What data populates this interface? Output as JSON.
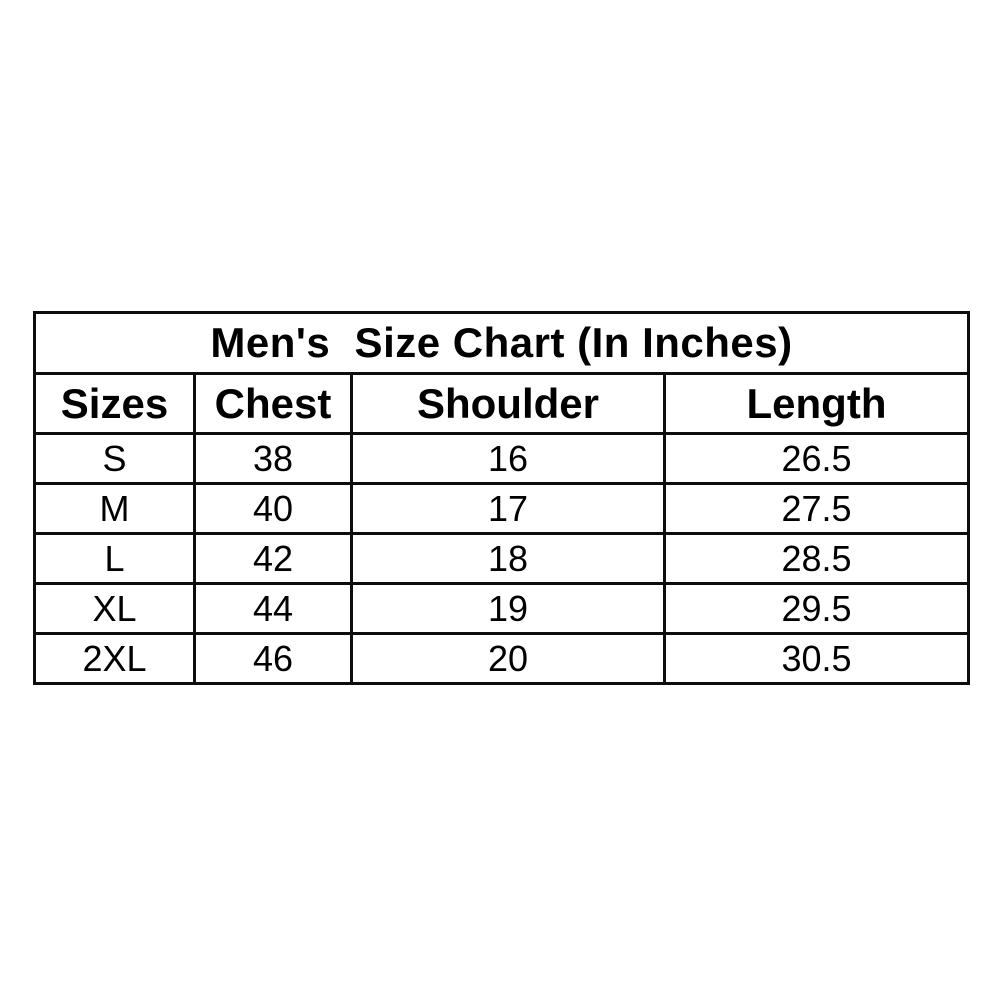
{
  "table": {
    "title": "Men's  Size Chart (In Inches)",
    "columns": [
      "Sizes",
      "Chest",
      "Shoulder",
      "Length"
    ],
    "rows": [
      [
        "S",
        "38",
        "16",
        "26.5"
      ],
      [
        "M",
        "40",
        "17",
        "27.5"
      ],
      [
        "L",
        "42",
        "18",
        "28.5"
      ],
      [
        "XL",
        "44",
        "19",
        "29.5"
      ],
      [
        "2XL",
        "46",
        "20",
        "30.5"
      ]
    ],
    "colors": {
      "border": "#0d0d0d",
      "text": "#000000",
      "background": "#ffffff"
    }
  }
}
